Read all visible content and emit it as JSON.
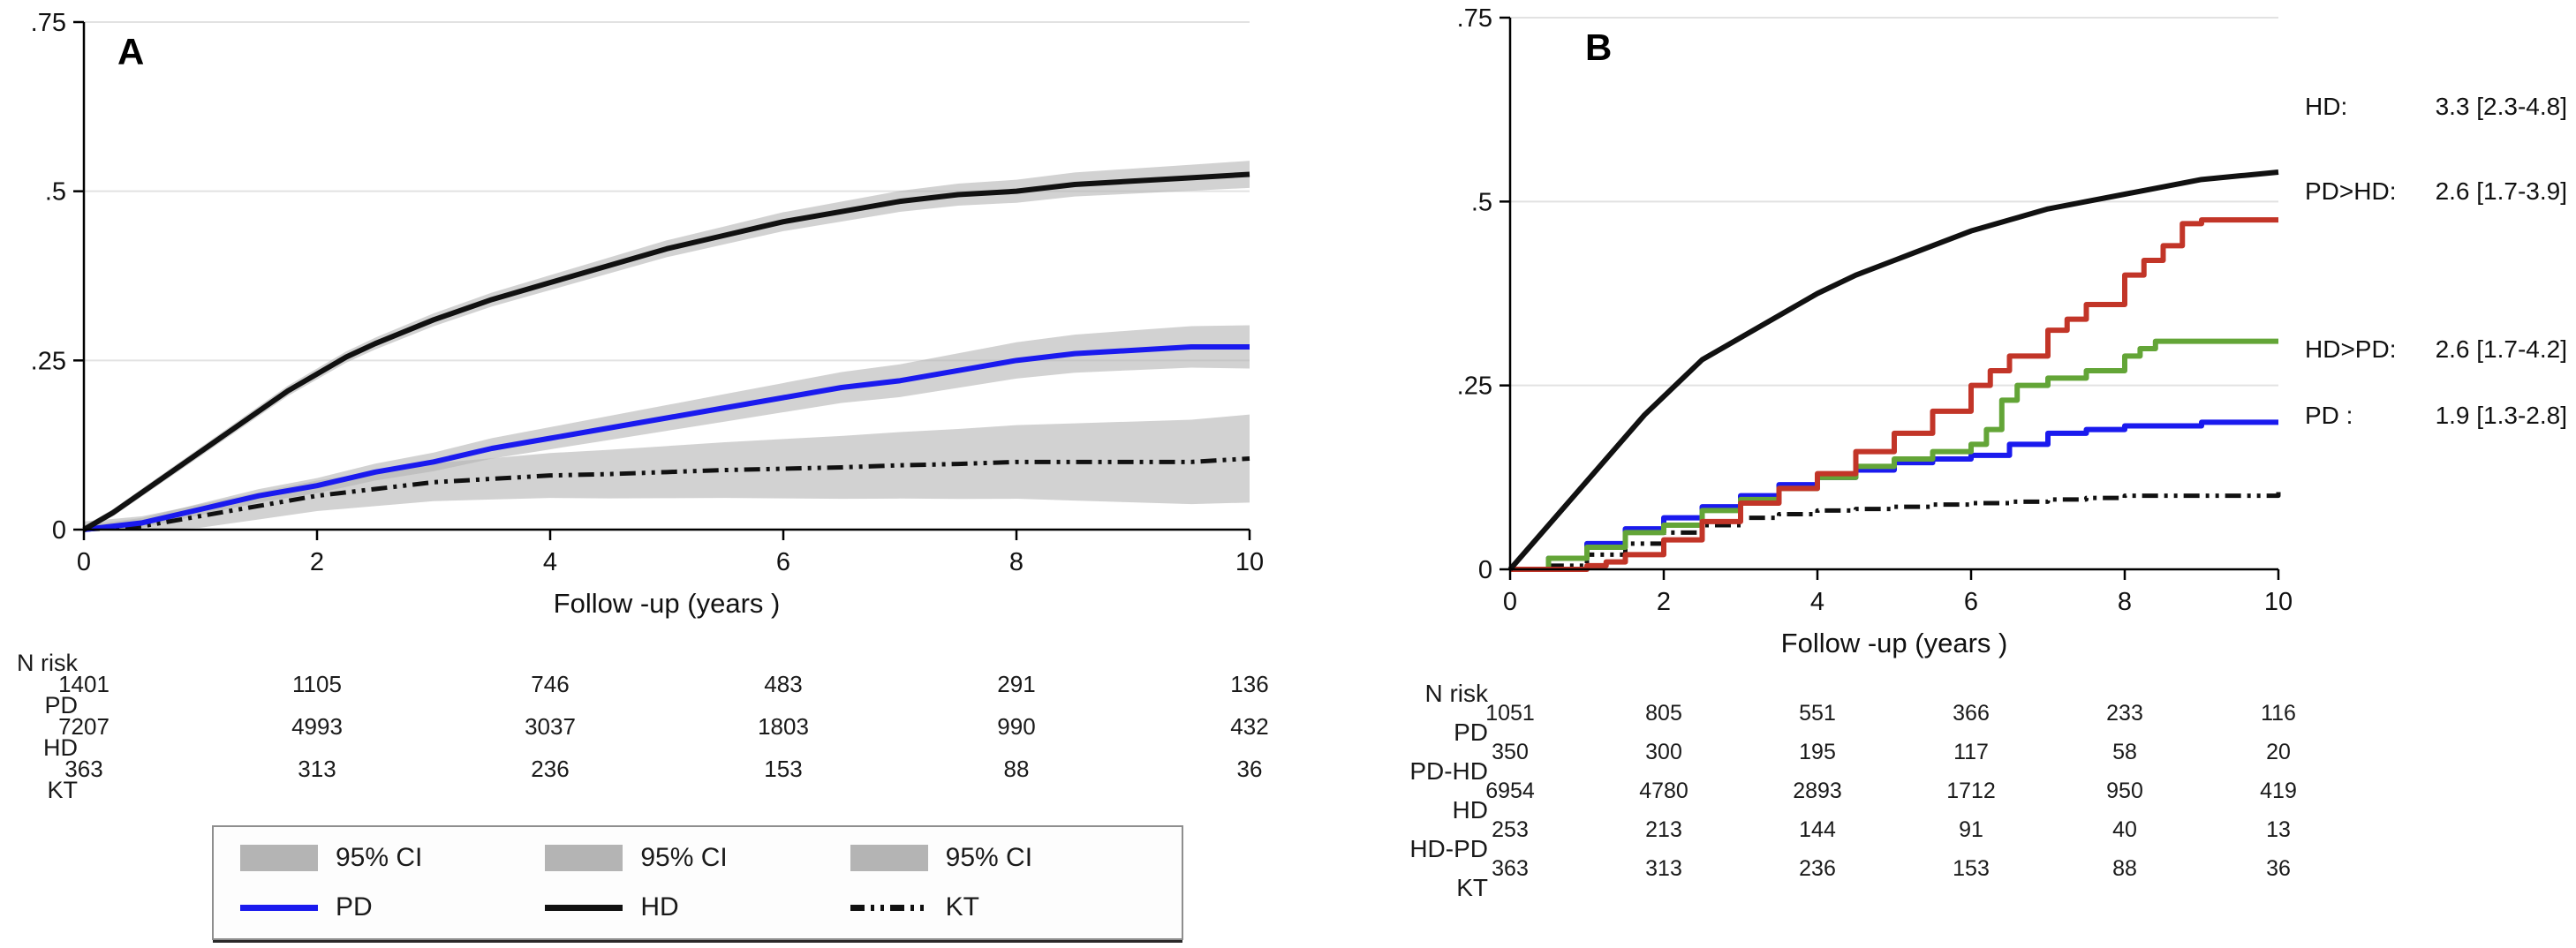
{
  "colors": {
    "pd": "#1a1aee",
    "hd": "#111111",
    "kt": "#111111",
    "pd_to_hd": "#c23528",
    "hd_to_pd": "#63a537",
    "ci_band": "#b4b4b4",
    "grid": "#e2e2e2",
    "axis": "#000000"
  },
  "chart_data": [
    {
      "type": "line",
      "panel_label": "A",
      "title": "",
      "xlabel": "Follow -up (years )",
      "ylabel": "",
      "xlim": [
        0,
        10
      ],
      "ylim": [
        0,
        0.75
      ],
      "xticks": [
        0,
        2,
        4,
        6,
        8,
        10
      ],
      "xtick_labels": [
        "0",
        "2",
        "4",
        "6",
        "8",
        "10"
      ],
      "yticks": [
        0,
        0.25,
        0.5,
        0.75
      ],
      "ytick_labels": [
        "0",
        ".25",
        ".5",
        ".75"
      ],
      "grid": "horizontal",
      "series": [
        {
          "name": "KT",
          "color": "#111111",
          "width": 5,
          "dash": "18 7 4 7 4 7",
          "step": false,
          "ci": [
            0.012,
            0.065
          ],
          "x": [
            0,
            0.5,
            1,
            1.5,
            2,
            2.5,
            3,
            3.5,
            4,
            4.5,
            5,
            5.5,
            6,
            6.5,
            7,
            7.5,
            8,
            8.5,
            9,
            9.5,
            10
          ],
          "y": [
            0,
            0.005,
            0.02,
            0.035,
            0.05,
            0.06,
            0.07,
            0.075,
            0.08,
            0.082,
            0.085,
            0.088,
            0.09,
            0.092,
            0.095,
            0.097,
            0.1,
            0.1,
            0.1,
            0.1,
            0.105
          ]
        },
        {
          "name": "PD",
          "color": "#1a1aee",
          "width": 6,
          "step": false,
          "ci": [
            0.006,
            0.032
          ],
          "x": [
            0,
            0.5,
            1,
            1.5,
            2,
            2.5,
            3,
            3.5,
            4,
            4.5,
            5,
            5.5,
            6,
            6.5,
            7,
            7.5,
            8,
            8.5,
            9,
            9.5,
            10
          ],
          "y": [
            0,
            0.01,
            0.03,
            0.05,
            0.065,
            0.085,
            0.1,
            0.12,
            0.135,
            0.15,
            0.165,
            0.18,
            0.195,
            0.21,
            0.22,
            0.235,
            0.25,
            0.26,
            0.265,
            0.27,
            0.27
          ]
        },
        {
          "name": "HD",
          "color": "#111111",
          "width": 6,
          "step": false,
          "ci": [
            0.005,
            0.02
          ],
          "x": [
            0,
            0.25,
            0.5,
            0.75,
            1,
            1.25,
            1.5,
            1.75,
            2,
            2.25,
            2.5,
            3,
            3.5,
            4,
            4.5,
            5,
            5.5,
            6,
            6.5,
            7,
            7.5,
            8,
            8.5,
            9,
            9.5,
            10
          ],
          "y": [
            0,
            0.025,
            0.055,
            0.085,
            0.115,
            0.145,
            0.175,
            0.205,
            0.23,
            0.255,
            0.275,
            0.31,
            0.34,
            0.365,
            0.39,
            0.415,
            0.435,
            0.455,
            0.47,
            0.485,
            0.495,
            0.5,
            0.51,
            0.515,
            0.52,
            0.525
          ]
        }
      ],
      "risk_table": {
        "labels": [
          "N risk",
          "PD",
          "HD",
          "KT"
        ],
        "rows": [
          [
            1401,
            1105,
            746,
            483,
            291,
            136
          ],
          [
            7207,
            4993,
            3037,
            1803,
            990,
            432
          ],
          [
            363,
            313,
            236,
            153,
            88,
            36
          ]
        ]
      },
      "legend": [
        {
          "swatch": "ci",
          "label": "95% CI"
        },
        {
          "swatch": "ci",
          "label": "95% CI"
        },
        {
          "swatch": "ci",
          "label": "95% CI"
        },
        {
          "swatch": "pd",
          "label": "PD"
        },
        {
          "swatch": "hd",
          "label": "HD"
        },
        {
          "swatch": "kt",
          "label": "KT"
        }
      ]
    },
    {
      "type": "line",
      "panel_label": "B",
      "title": "",
      "xlabel": "Follow -up (years )",
      "ylabel": "",
      "xlim": [
        0,
        10
      ],
      "ylim": [
        0,
        0.75
      ],
      "xticks": [
        0,
        2,
        4,
        6,
        8,
        10
      ],
      "xtick_labels": [
        "0",
        "2",
        "4",
        "6",
        "8",
        "10"
      ],
      "yticks": [
        0,
        0.25,
        0.5,
        0.75
      ],
      "ytick_labels": [
        "0",
        ".25",
        ".5",
        ".75"
      ],
      "grid": "horizontal",
      "series": [
        {
          "name": "KT",
          "color": "#111111",
          "width": 5,
          "dash": "18 7 4 7 4 7",
          "step": true,
          "x": [
            0,
            0.5,
            1,
            1.5,
            2,
            2.5,
            3,
            3.5,
            4,
            4.5,
            5,
            5.5,
            6,
            6.5,
            7,
            7.5,
            8,
            8.5,
            9,
            9.5,
            10
          ],
          "y": [
            0,
            0.005,
            0.02,
            0.035,
            0.05,
            0.06,
            0.07,
            0.075,
            0.08,
            0.082,
            0.085,
            0.088,
            0.09,
            0.092,
            0.095,
            0.097,
            0.1,
            0.1,
            0.1,
            0.1,
            0.105
          ]
        },
        {
          "name": "PD",
          "color": "#1a1aee",
          "width": 6,
          "step": true,
          "x": [
            0,
            0.5,
            1,
            1.5,
            2,
            2.5,
            3,
            3.5,
            4,
            4.5,
            5,
            5.5,
            6,
            6.5,
            7,
            7.5,
            8,
            8.5,
            9,
            9.5,
            10
          ],
          "y": [
            0,
            0.015,
            0.035,
            0.055,
            0.07,
            0.085,
            0.1,
            0.115,
            0.125,
            0.135,
            0.145,
            0.15,
            0.155,
            0.17,
            0.185,
            0.19,
            0.195,
            0.195,
            0.2,
            0.2,
            0.2
          ]
        },
        {
          "name": "HD>PD",
          "color": "#63a537",
          "width": 6,
          "step": true,
          "x": [
            0,
            0.5,
            1,
            1.5,
            2,
            2.5,
            3,
            3.5,
            4,
            4.5,
            5,
            5.5,
            6,
            6.2,
            6.4,
            6.6,
            7,
            7.5,
            8,
            8.2,
            8.4,
            9,
            10
          ],
          "y": [
            0,
            0.015,
            0.03,
            0.05,
            0.06,
            0.08,
            0.095,
            0.11,
            0.125,
            0.14,
            0.15,
            0.16,
            0.17,
            0.19,
            0.23,
            0.25,
            0.26,
            0.27,
            0.29,
            0.3,
            0.31,
            0.31,
            0.31
          ]
        },
        {
          "name": "PD>HD",
          "color": "#c23528",
          "width": 6,
          "step": true,
          "x": [
            0,
            0.5,
            1,
            1.25,
            1.5,
            2,
            2.5,
            3,
            3.5,
            4,
            4.5,
            5,
            5.5,
            6,
            6.25,
            6.5,
            7,
            7.25,
            7.5,
            8,
            8.25,
            8.5,
            8.75,
            9,
            10
          ],
          "y": [
            0,
            0,
            0.005,
            0.01,
            0.02,
            0.04,
            0.065,
            0.09,
            0.11,
            0.13,
            0.16,
            0.185,
            0.215,
            0.25,
            0.27,
            0.29,
            0.325,
            0.34,
            0.36,
            0.4,
            0.42,
            0.44,
            0.47,
            0.475,
            0.475
          ]
        },
        {
          "name": "HD",
          "color": "#111111",
          "width": 6,
          "step": false,
          "x": [
            0,
            0.25,
            0.5,
            0.75,
            1,
            1.25,
            1.5,
            1.75,
            2,
            2.25,
            2.5,
            3,
            3.5,
            4,
            4.5,
            5,
            5.5,
            6,
            6.5,
            7,
            7.5,
            8,
            8.5,
            9,
            9.5,
            10
          ],
          "y": [
            0,
            0.03,
            0.06,
            0.09,
            0.12,
            0.15,
            0.18,
            0.21,
            0.235,
            0.26,
            0.285,
            0.315,
            0.345,
            0.375,
            0.4,
            0.42,
            0.44,
            0.46,
            0.475,
            0.49,
            0.5,
            0.51,
            0.52,
            0.53,
            0.535,
            0.54
          ]
        }
      ],
      "annotations": [
        {
          "label": "HD:",
          "value": "3.3 [2.3-4.8]",
          "y": 0.63
        },
        {
          "label": "PD>HD:",
          "value": "2.6 [1.7-3.9]",
          "y": 0.515
        },
        {
          "label": "HD>PD:",
          "value": "2.6 [1.7-4.2]",
          "y": 0.3
        },
        {
          "label": "PD :",
          "value": "1.9 [1.3-2.8]",
          "y": 0.21
        }
      ],
      "risk_table": {
        "labels": [
          "N risk",
          "PD",
          "PD-HD",
          "HD",
          "HD-PD",
          "KT"
        ],
        "rows": [
          [
            1051,
            805,
            551,
            366,
            233,
            116
          ],
          [
            350,
            300,
            195,
            117,
            58,
            20
          ],
          [
            6954,
            4780,
            2893,
            1712,
            950,
            419
          ],
          [
            253,
            213,
            144,
            91,
            40,
            13
          ],
          [
            363,
            313,
            236,
            153,
            88,
            36
          ]
        ]
      }
    }
  ]
}
